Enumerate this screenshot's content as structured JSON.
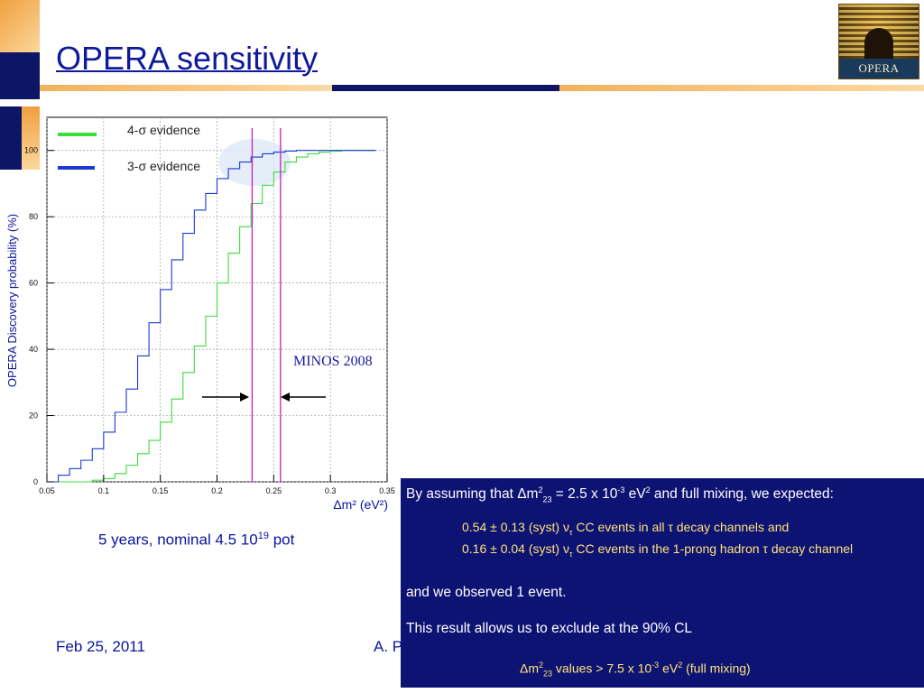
{
  "slide": {
    "title": "OPERA sensitivity",
    "logo_text": "OPERA",
    "caption_prefix": "5 years, nominal 4.5 10",
    "caption_exp": "19",
    "caption_suffix": " pot",
    "footer_date": "Feb 25, 2011",
    "footer_author": "A. P"
  },
  "result_panel": {
    "intro_a": "By assuming that Δm",
    "intro_sup": "2",
    "intro_sub": "23",
    "intro_b": " = 2.5 x 10",
    "intro_exp": "-3",
    "intro_c": " eV",
    "intro_exp2": "2",
    "intro_d": " and full mixing, we expected:",
    "expect1_a": "0.54 ± 0.13 (syst) ν",
    "expect1_sub": "τ",
    "expect1_b": " CC events in all τ decay channels and",
    "expect2_a": "0.16 ± 0.04 (syst) ν",
    "expect2_sub": "τ",
    "expect2_b": " CC events in the 1-prong hadron τ decay channel",
    "observed": "and we observed 1 event.",
    "exclusion": "This result allows us to exclude at the 90% CL",
    "value_a": "Δm",
    "value_sup": "2",
    "value_sub": "23",
    "value_b": " values > 7.5 x 10",
    "value_exp": "-3",
    "value_c": " eV",
    "value_exp2": "2",
    "value_d": " (full mixing)"
  },
  "chart_data": {
    "type": "line",
    "title": "",
    "xlabel": "Δm² (eV²)",
    "ylabel": "OPERA  Discovery probability (%)",
    "xlim": [
      0.05,
      0.35
    ],
    "ylim": [
      0,
      110
    ],
    "x_ticks": [
      "0.05",
      "0.1",
      "0.15",
      "0.2",
      "0.25",
      "0.3",
      "0.35"
    ],
    "y_ticks": [
      "0",
      "20",
      "40",
      "60",
      "80",
      "100"
    ],
    "grid": true,
    "legend_placement": "top-left",
    "series": [
      {
        "name": "4-σ evidence",
        "color": "#3ddc3d",
        "step": true,
        "x": [
          0.05,
          0.07,
          0.09,
          0.1,
          0.11,
          0.12,
          0.13,
          0.14,
          0.15,
          0.16,
          0.17,
          0.18,
          0.19,
          0.2,
          0.21,
          0.22,
          0.23,
          0.24,
          0.25,
          0.26,
          0.27,
          0.28,
          0.29,
          0.3,
          0.31,
          0.32,
          0.33,
          0.34
        ],
        "y": [
          0,
          0,
          0.5,
          1,
          2.5,
          5,
          8.5,
          12.5,
          18,
          25,
          33,
          41,
          50,
          60,
          69,
          77,
          84,
          89.5,
          93.5,
          96.5,
          98,
          99,
          99.5,
          99.8,
          100,
          100,
          100,
          100
        ]
      },
      {
        "name": "3-σ evidence",
        "color": "#1a3ad0",
        "step": true,
        "x": [
          0.05,
          0.06,
          0.07,
          0.08,
          0.09,
          0.1,
          0.11,
          0.12,
          0.13,
          0.14,
          0.15,
          0.16,
          0.17,
          0.18,
          0.19,
          0.2,
          0.21,
          0.22,
          0.23,
          0.24,
          0.25,
          0.26,
          0.27,
          0.28,
          0.29,
          0.3,
          0.31,
          0.32,
          0.33,
          0.34
        ],
        "y": [
          0,
          2,
          4,
          6.5,
          10,
          15,
          21,
          28,
          38,
          48,
          58,
          67,
          75,
          82,
          87,
          91.5,
          94.5,
          96.5,
          98,
          99,
          99.5,
          99.8,
          100,
          100,
          100,
          100,
          100,
          100,
          100,
          100
        ]
      }
    ],
    "vertical_lines": [
      {
        "x": 0.231,
        "color": "#c020c0"
      },
      {
        "x": 0.256,
        "color": "#c020c0"
      }
    ],
    "annotations": [
      {
        "text": "MINOS 2008",
        "color": "#1a1aa0"
      }
    ]
  }
}
